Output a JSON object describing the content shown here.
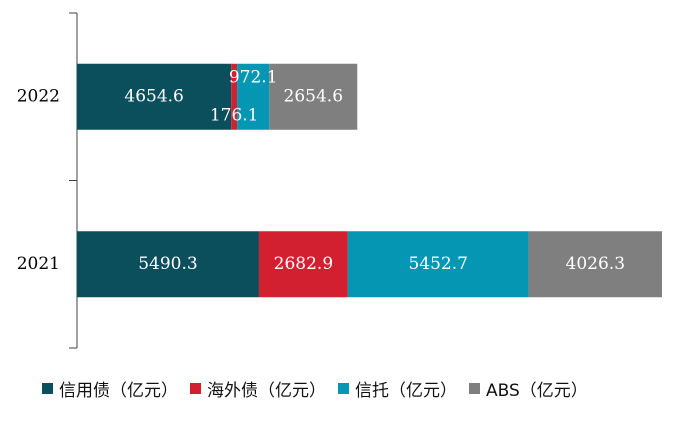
{
  "chart_data": {
    "type": "bar",
    "orientation": "horizontal",
    "stacked": true,
    "categories": [
      "2022",
      "2021"
    ],
    "series": [
      {
        "name": "信用债（亿元）",
        "color": "#0b4e5c",
        "values": [
          4654.6,
          5490.3
        ]
      },
      {
        "name": "海外债（亿元）",
        "color": "#d32030",
        "values": [
          176.1,
          2682.9
        ]
      },
      {
        "name": "信托（亿元）",
        "color": "#0596b4",
        "values": [
          972.1,
          5452.7
        ]
      },
      {
        "name": "ABS（亿元）",
        "color": "#7f7f7f",
        "values": [
          2654.6,
          4026.3
        ]
      }
    ],
    "data_labels": [
      [
        "4654.6",
        "176.1",
        "972.1",
        "2654.6"
      ],
      [
        "5490.3",
        "2682.9",
        "5452.7",
        "4026.3"
      ]
    ],
    "title": "",
    "xlabel": "",
    "ylabel": "",
    "xlim": [
      0,
      17652.2
    ],
    "grid": false,
    "legend_position": "bottom"
  }
}
